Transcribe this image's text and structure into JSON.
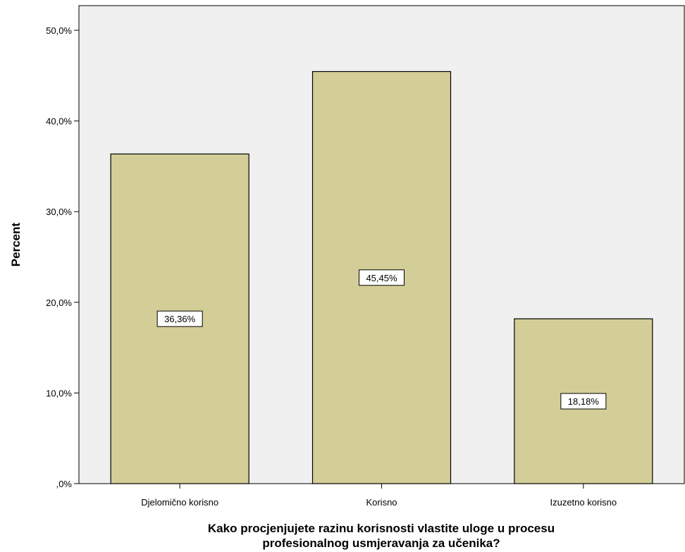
{
  "chart_data": {
    "type": "bar",
    "categories": [
      "Djelomično korisno",
      "Korisno",
      "Izuzetno korisno"
    ],
    "values": [
      36.36,
      45.45,
      18.18
    ],
    "data_labels": [
      "36,36%",
      "45,45%",
      "18,18%"
    ],
    "ylabel": "Percent",
    "xlabel_lines": [
      "Kako procjenjujete razinu korisnosti vlastite uloge u procesu",
      "profesionalnog usmjeravanja za učenika?"
    ],
    "ylim": [
      0,
      50
    ],
    "yticks": [
      0,
      10,
      20,
      30,
      40,
      50
    ],
    "ytick_labels": [
      ",0%",
      "10,0%",
      "20,0%",
      "30,0%",
      "40,0%",
      "50,0%"
    ],
    "grid": false,
    "legend": "none",
    "colors": {
      "plot_background": "#f0f0f0",
      "bar_fill": "#d3ce97",
      "bar_stroke": "#000000",
      "label_box_fill": "#ffffff"
    }
  }
}
